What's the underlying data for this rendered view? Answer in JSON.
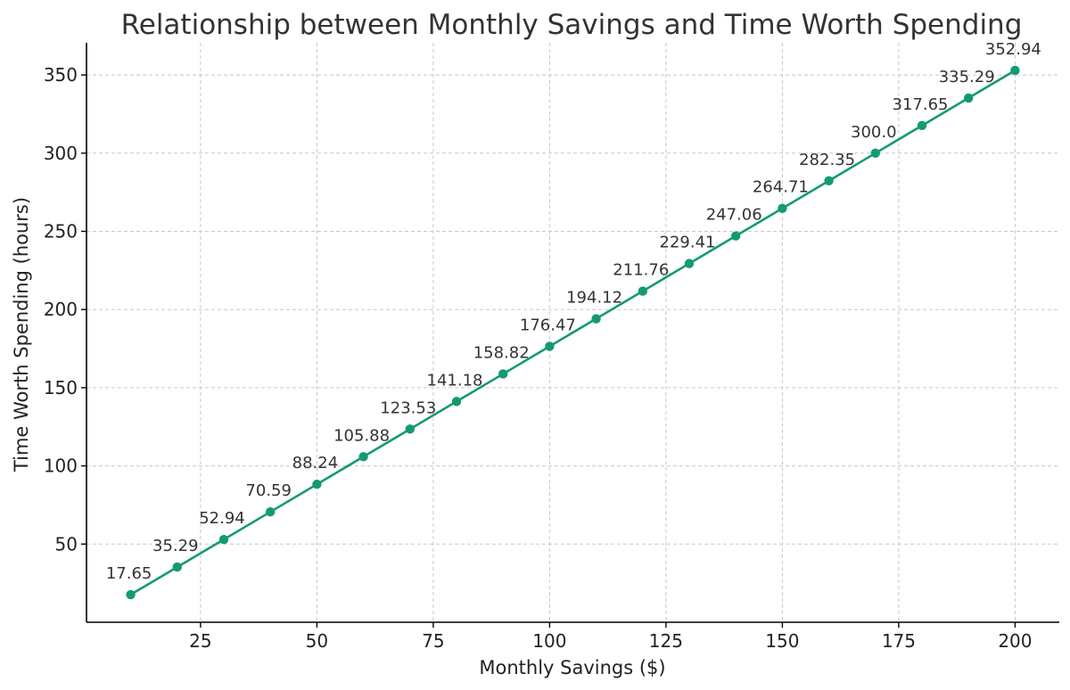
{
  "chart_data": {
    "type": "line",
    "title": "Relationship between Monthly Savings and Time Worth Spending",
    "xlabel": "Monthly Savings ($)",
    "ylabel": "Time Worth Spending (hours)",
    "x": [
      10,
      20,
      30,
      40,
      50,
      60,
      70,
      80,
      90,
      100,
      110,
      120,
      130,
      140,
      150,
      160,
      170,
      180,
      190,
      200
    ],
    "series": [
      {
        "values": [
          17.65,
          35.29,
          52.94,
          70.59,
          88.24,
          105.88,
          123.53,
          141.18,
          158.82,
          176.47,
          194.12,
          211.76,
          229.41,
          247.06,
          264.71,
          282.35,
          300.0,
          317.65,
          335.29,
          352.94
        ],
        "color": "#139a74"
      }
    ],
    "data_labels": [
      "17.65",
      "35.29",
      "52.94",
      "70.59",
      "88.24",
      "105.88",
      "123.53",
      "141.18",
      "158.82",
      "176.47",
      "194.12",
      "211.76",
      "229.41",
      "247.06",
      "264.71",
      "282.35",
      "300.0",
      "317.65",
      "335.29",
      "352.94"
    ],
    "xlim": [
      0.5,
      209.5
    ],
    "ylim": [
      0.003,
      370.587
    ],
    "x_ticks": [
      25,
      50,
      75,
      100,
      125,
      150,
      175,
      200
    ],
    "y_ticks": [
      50,
      100,
      150,
      200,
      250,
      300,
      350
    ],
    "grid": true,
    "legend": "none",
    "marker": "circle"
  }
}
